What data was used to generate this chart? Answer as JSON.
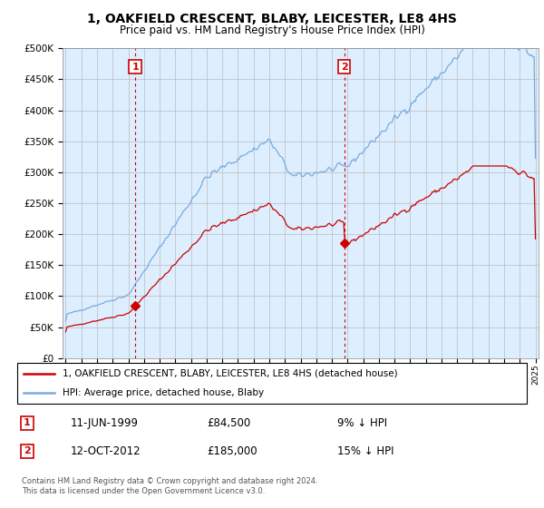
{
  "title": "1, OAKFIELD CRESCENT, BLABY, LEICESTER, LE8 4HS",
  "subtitle": "Price paid vs. HM Land Registry's House Price Index (HPI)",
  "legend_line1": "1, OAKFIELD CRESCENT, BLABY, LEICESTER, LE8 4HS (detached house)",
  "legend_line2": "HPI: Average price, detached house, Blaby",
  "sale1_date": "11-JUN-1999",
  "sale1_price": 84500,
  "sale1_label": "9% ↓ HPI",
  "sale2_date": "12-OCT-2012",
  "sale2_price": 185000,
  "sale2_label": "15% ↓ HPI",
  "footer": "Contains HM Land Registry data © Crown copyright and database right 2024.\nThis data is licensed under the Open Government Licence v3.0.",
  "hpi_color": "#7aaadd",
  "sale_color": "#cc0000",
  "vline_color": "#cc0000",
  "bg_color": "#ddeeff",
  "ylim_min": 0,
  "ylim_max": 500000,
  "ytick_step": 50000,
  "xstart": 1995,
  "xend": 2025,
  "sale1_x": 1999.44,
  "sale2_x": 2012.78
}
